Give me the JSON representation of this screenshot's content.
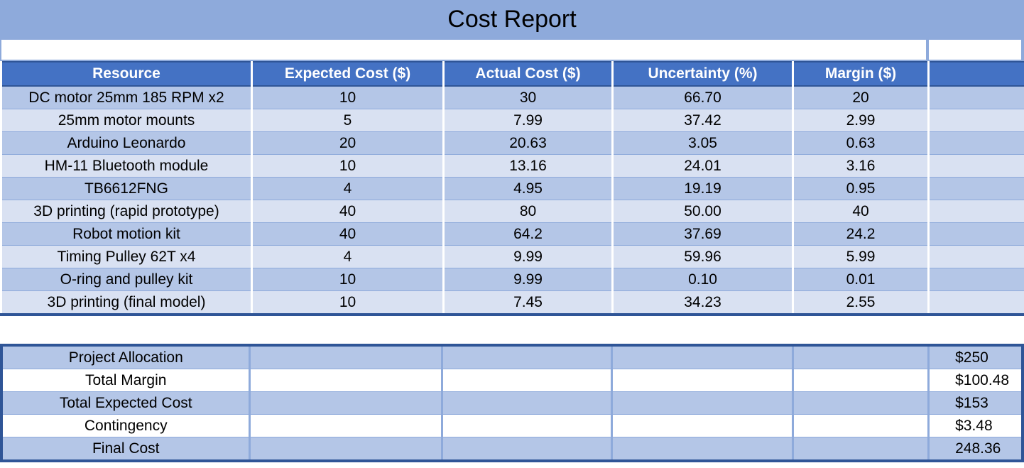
{
  "title": "Cost Report",
  "headers": [
    "Resource",
    "Expected Cost ($)",
    "Actual Cost ($)",
    "Uncertainty (%)",
    "Margin ($)",
    ""
  ],
  "rows": [
    [
      "DC motor 25mm 185 RPM x2",
      "10",
      "30",
      "66.70",
      "20",
      ""
    ],
    [
      "25mm motor mounts",
      "5",
      "7.99",
      "37.42",
      "2.99",
      ""
    ],
    [
      "Arduino Leonardo",
      "20",
      "20.63",
      "3.05",
      "0.63",
      ""
    ],
    [
      "HM-11 Bluetooth module",
      "10",
      "13.16",
      "24.01",
      "3.16",
      ""
    ],
    [
      "TB6612FNG",
      "4",
      "4.95",
      "19.19",
      "0.95",
      ""
    ],
    [
      "3D printing (rapid prototype)",
      "40",
      "80",
      "50.00",
      "40",
      ""
    ],
    [
      "Robot motion kit",
      "40",
      "64.2",
      "37.69",
      "24.2",
      ""
    ],
    [
      "Timing Pulley 62T x4",
      "4",
      "9.99",
      "59.96",
      "5.99",
      ""
    ],
    [
      "O-ring and pulley kit",
      "10",
      "9.99",
      "0.10",
      "0.01",
      ""
    ],
    [
      "3D printing (final model)",
      "10",
      "7.45",
      "34.23",
      "2.55",
      ""
    ]
  ],
  "summary": [
    {
      "label": "Project Allocation",
      "value": "$250"
    },
    {
      "label": "Total Margin",
      "value": "$100.48"
    },
    {
      "label": "Total Expected Cost",
      "value": "$153"
    },
    {
      "label": "Contingency",
      "value": "$3.48"
    },
    {
      "label": "Final Cost",
      "value": "248.36"
    }
  ],
  "colors": {
    "header_bg": "#4472c4",
    "title_bg": "#8eaadb",
    "row_dark": "#b4c6e7",
    "row_light": "#d9e1f2",
    "border_dark": "#2f5597"
  }
}
